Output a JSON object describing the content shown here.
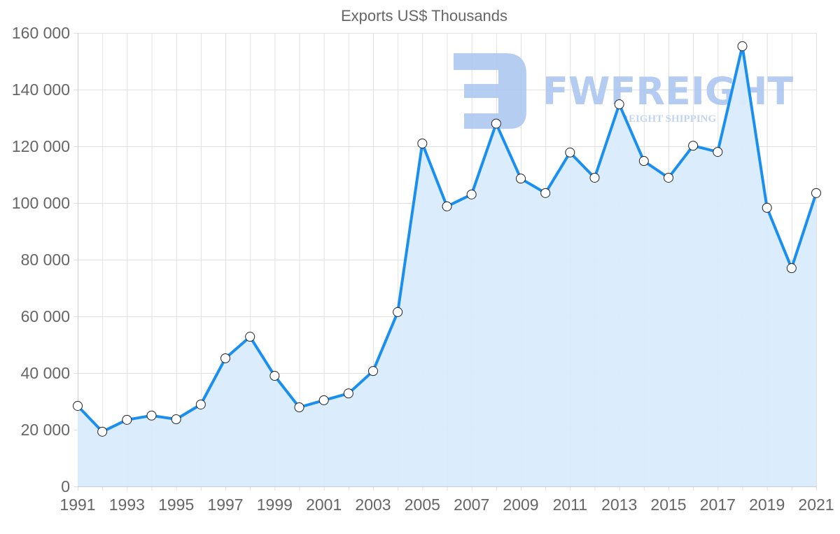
{
  "chart_data": {
    "type": "area",
    "title": "Exports US$ Thousands",
    "xlabel": "",
    "ylabel": "",
    "ylim": [
      0,
      160000
    ],
    "y_ticks": [
      0,
      20000,
      40000,
      60000,
      80000,
      100000,
      120000,
      140000,
      160000
    ],
    "y_tick_labels": [
      "0",
      "20 000",
      "40 000",
      "60 000",
      "80 000",
      "100 000",
      "120 000",
      "140 000",
      "160 000"
    ],
    "x_tick_labels": [
      "1991",
      "1993",
      "1995",
      "1997",
      "1999",
      "2001",
      "2003",
      "2005",
      "2007",
      "2009",
      "2011",
      "2013",
      "2015",
      "2017",
      "2019",
      "2021"
    ],
    "grid": true,
    "legend": "none",
    "x": [
      1991,
      1992,
      1993,
      1994,
      1995,
      1996,
      1997,
      1998,
      1999,
      2000,
      2001,
      2002,
      2003,
      2004,
      2005,
      2006,
      2007,
      2008,
      2009,
      2010,
      2011,
      2012,
      2013,
      2014,
      2015,
      2016,
      2017,
      2018,
      2019,
      2020,
      2021
    ],
    "series": [
      {
        "name": "Exports US$ Thousands",
        "values": [
          28400,
          19300,
          23500,
          25000,
          23700,
          28900,
          45200,
          52800,
          39000,
          27900,
          30400,
          32800,
          40700,
          61500,
          121000,
          98800,
          103000,
          128000,
          108600,
          103500,
          117800,
          108900,
          134800,
          114800,
          108900,
          120200,
          118000,
          155300,
          98300,
          77000,
          103500
        ]
      }
    ],
    "colors": {
      "line": "#1a8ff0",
      "fill": "#d9ecfd",
      "marker_fill": "#ffffff",
      "marker_stroke": "#222222",
      "grid": "#e0e0e0",
      "text": "#666666"
    }
  },
  "watermark": {
    "brand": "FWFREIGHT",
    "tagline": "FREIGHT SHIPPING"
  }
}
